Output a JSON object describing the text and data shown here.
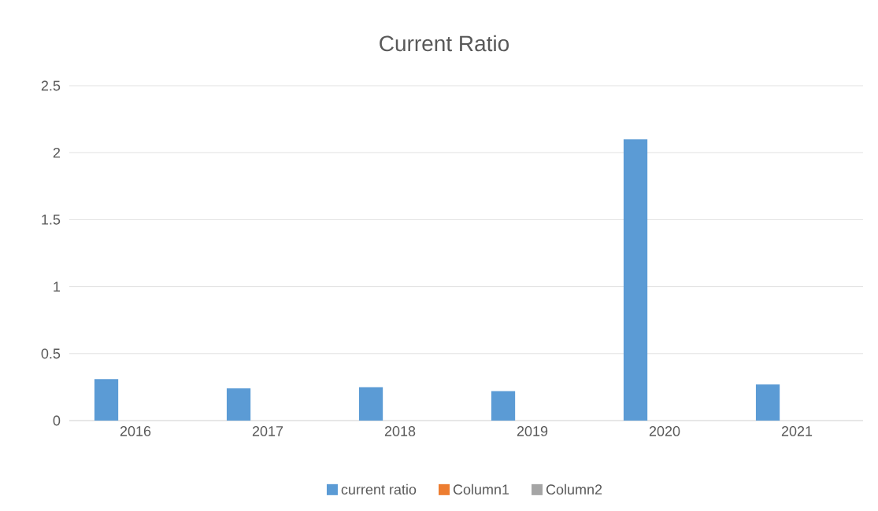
{
  "chart_data": {
    "type": "bar",
    "title": "Current Ratio",
    "categories": [
      "2016",
      "2017",
      "2018",
      "2019",
      "2020",
      "2021"
    ],
    "series": [
      {
        "name": "current ratio",
        "color": "#5b9bd5",
        "values": [
          0.31,
          0.24,
          0.25,
          0.22,
          2.1,
          0.27
        ]
      },
      {
        "name": "Column1",
        "color": "#ed7d31",
        "values": [
          null,
          null,
          null,
          null,
          null,
          null
        ]
      },
      {
        "name": "Column2",
        "color": "#a5a5a5",
        "values": [
          null,
          null,
          null,
          null,
          null,
          null
        ]
      }
    ],
    "ylim": [
      0,
      2.5
    ],
    "yticks": [
      0,
      0.5,
      1,
      1.5,
      2,
      2.5
    ],
    "grid": "y",
    "legend": "bottom"
  }
}
